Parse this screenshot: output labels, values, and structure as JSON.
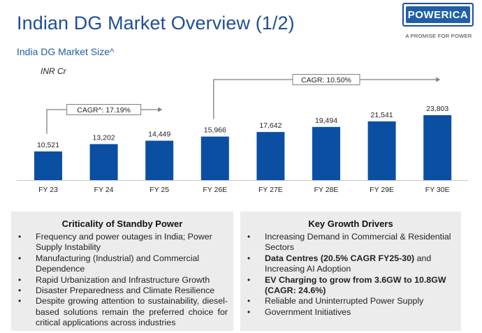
{
  "header": {
    "title": "Indian DG Market Overview (1/2)",
    "subtitle": "India DG Market Size^",
    "unit": "INR Cr"
  },
  "logo": {
    "word": "POWERICA",
    "tagline": "A PROMISE FOR POWER"
  },
  "colors": {
    "bar": "#0b4fa3",
    "title": "#1f4e96",
    "panel_bg": "#ececec"
  },
  "chart_data": {
    "type": "bar",
    "categories": [
      "FY 23",
      "FY 24",
      "FY 25",
      "FY 26E",
      "FY 27E",
      "FY 28E",
      "FY 29E",
      "FY 30E"
    ],
    "values": [
      10521,
      13202,
      14449,
      15966,
      17642,
      19494,
      21541,
      23803
    ],
    "value_labels": [
      "10,521",
      "13,202",
      "14,449",
      "15,966",
      "17,642",
      "19,494",
      "21,541",
      "23,803"
    ],
    "ylabel": "INR Cr",
    "ylim": [
      0,
      23803
    ],
    "grid": false,
    "annotations": [
      {
        "text": "CAGR^: 17.19%",
        "from": "FY 23",
        "to": "FY 25"
      },
      {
        "text": "CAGR: 10.50%",
        "from": "FY 26E",
        "to": "FY 30E"
      }
    ]
  },
  "panels": {
    "criticality": {
      "title": "Criticality of Standby Power",
      "items": [
        "Frequency and power outages in India; Power Supply Instability",
        "Manufacturing (Industrial) and Commercial Dependence",
        "Rapid Urbanization and Infrastructure Growth",
        "Disaster Preparedness and Climate Resilience",
        "Despite growing attention to sustainability, diesel-based solutions remain the preferred choice for critical applications across industries"
      ]
    },
    "drivers": {
      "title": "Key Growth Drivers",
      "items": [
        {
          "bold": "",
          "text": "Increasing Demand in Commercial & Residential Sectors"
        },
        {
          "bold": "Data Centres (20.5% CAGR FY25-30)",
          "text": " and Increasing AI Adoption"
        },
        {
          "bold": "EV Charging to grow from 3.6GW to 10.8GW (CAGR: 24.6%)",
          "text": ""
        },
        {
          "bold": "",
          "text": "Reliable and Uninterrupted Power Supply"
        },
        {
          "bold": "",
          "text": "Government Initiatives"
        }
      ]
    }
  }
}
